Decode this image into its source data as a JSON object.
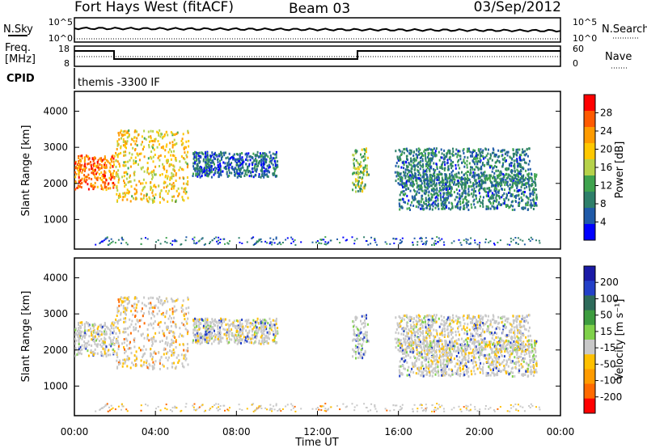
{
  "header": {
    "station": "Fort Hays West (fitACF)",
    "beam": "Beam 03",
    "date": "03/Sep/2012"
  },
  "strips": {
    "nsky_label": "N.Sky",
    "nsearch_label": "N.Search",
    "noise_ticks": [
      "10^5",
      "10^0"
    ],
    "freq_label_line1": "Freq.",
    "freq_label_line2": "[MHz]",
    "freq_ticks": [
      "18",
      "8"
    ],
    "nave_label": "Nave",
    "nave_ticks": [
      "60",
      "0"
    ],
    "cpid_label": "CPID",
    "cpid_text": "themis -3300 IF"
  },
  "axes": {
    "xlabel": "Time UT",
    "ylabel": "Slant Range [km]"
  },
  "colorbars": {
    "power": {
      "label": "Power [dB]",
      "ticks": [
        "28",
        "24",
        "20",
        "16",
        "12",
        "8",
        "4"
      ],
      "colors": [
        "#ff0000",
        "#ff5a00",
        "#ff9b00",
        "#ffc800",
        "#b6d24a",
        "#3fa34e",
        "#2e7f6a",
        "#1f5aa8",
        "#0000ff"
      ]
    },
    "velocity": {
      "label": "Velocity [m s⁻¹]",
      "ticks": [
        "200",
        "100",
        "50",
        "15",
        "-15",
        "-50",
        "-100",
        "-200"
      ],
      "colors": [
        "#1a1aa6",
        "#2340c8",
        "#2e6b5a",
        "#3d9c3f",
        "#7fd14a",
        "#c8c8c8",
        "#ffc000",
        "#ff9b00",
        "#ff6a00",
        "#ff0000"
      ]
    }
  },
  "chart_data": [
    {
      "type": "heatmap",
      "title": "",
      "quantity": "Power [dB]",
      "xlabel": "Time UT",
      "ylabel": "Slant Range [km]",
      "xlim": [
        "00:00",
        "24:00"
      ],
      "ylim": [
        180,
        4550
      ],
      "x_ticks": [
        "00:00",
        "04:00",
        "08:00",
        "12:00",
        "16:00",
        "20:00",
        "00:00"
      ],
      "y_ticks": [
        1000,
        2000,
        3000,
        4000
      ],
      "echo_regions": [
        {
          "name": "early",
          "t_start": 0.0,
          "t_end": 1.95,
          "range_low": 1850,
          "range_high": 2800,
          "power_db": 24
        },
        {
          "name": "morning",
          "t_start": 2.0,
          "t_end": 5.6,
          "range_low": 1500,
          "range_high": 3500,
          "power_db": 18
        },
        {
          "name": "mid",
          "t_start": 5.8,
          "t_end": 10.0,
          "range_low": 2200,
          "range_high": 2900,
          "power_db": 6
        },
        {
          "name": "noon",
          "t_start": 13.7,
          "t_end": 14.5,
          "range_low": 1800,
          "range_high": 3000,
          "power_db": 14
        },
        {
          "name": "arc_upper",
          "t_start": 15.8,
          "t_end": 22.5,
          "range_low": 1950,
          "range_high": 3000,
          "power_db": 8
        },
        {
          "name": "arc_lower",
          "t_start": 16.0,
          "t_end": 22.8,
          "range_low": 1300,
          "range_high": 2300,
          "power_db": 8
        }
      ]
    },
    {
      "type": "heatmap",
      "title": "",
      "quantity": "Velocity [m s-1]",
      "xlabel": "Time UT",
      "ylabel": "Slant Range [km]",
      "xlim": [
        "00:00",
        "24:00"
      ],
      "ylim": [
        180,
        4550
      ],
      "x_ticks": [
        "00:00",
        "04:00",
        "08:00",
        "12:00",
        "16:00",
        "20:00",
        "00:00"
      ],
      "y_ticks": [
        1000,
        2000,
        3000,
        4000
      ],
      "echo_regions": [
        {
          "name": "early",
          "t_start": 0.0,
          "t_end": 1.95,
          "range_low": 1850,
          "range_high": 2800,
          "velocity": 0
        },
        {
          "name": "morning",
          "t_start": 2.0,
          "t_end": 5.6,
          "range_low": 1500,
          "range_high": 3500,
          "velocity": -20
        },
        {
          "name": "mid",
          "t_start": 5.8,
          "t_end": 10.0,
          "range_low": 2200,
          "range_high": 2900,
          "velocity": 0
        },
        {
          "name": "noon",
          "t_start": 13.7,
          "t_end": 14.5,
          "range_low": 1800,
          "range_high": 3000,
          "velocity": 40
        },
        {
          "name": "arc_upper",
          "t_start": 15.8,
          "t_end": 22.5,
          "range_low": 1950,
          "range_high": 3000,
          "velocity": 0
        },
        {
          "name": "arc_lower",
          "t_start": 16.0,
          "t_end": 22.8,
          "range_low": 1300,
          "range_high": 2300,
          "velocity": 0
        }
      ]
    }
  ]
}
